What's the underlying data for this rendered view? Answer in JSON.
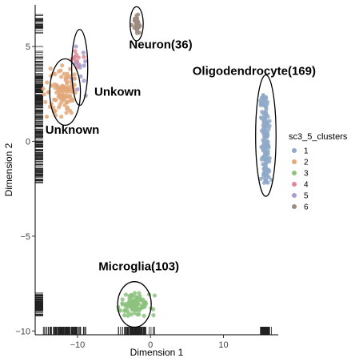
{
  "chart_data": {
    "type": "scatter",
    "xlabel": "Dimension 1",
    "ylabel": "Dimension 2",
    "xlim": [
      -15.8,
      17.5
    ],
    "ylim": [
      -10.2,
      7.2
    ],
    "x_ticks": [
      -10,
      0,
      10
    ],
    "y_ticks": [
      -10,
      -5,
      0,
      5
    ],
    "grid": false,
    "rug": true,
    "legend": {
      "title": "sc3_5_clusters",
      "position": "right",
      "entries": [
        {
          "label": "1",
          "color": "#8fa9c8"
        },
        {
          "label": "2",
          "color": "#e3a87a"
        },
        {
          "label": "3",
          "color": "#8cc27e"
        },
        {
          "label": "4",
          "color": "#de8a94"
        },
        {
          "label": "5",
          "color": "#a99ad0"
        },
        {
          "label": "6",
          "color": "#9d8a80"
        }
      ]
    },
    "series": [
      {
        "name": "1",
        "cluster": "Oligodendrocyte",
        "center": [
          15.7,
          0.3
        ],
        "points": 169,
        "x_spread": 0.45,
        "y_range": [
          -2.2,
          2.5
        ]
      },
      {
        "name": "2",
        "cluster": "Unknown",
        "center": [
          -11.8,
          2.6
        ],
        "points": 110,
        "x_spread": 1.3,
        "y_range": [
          1.3,
          4.0
        ]
      },
      {
        "name": "3",
        "cluster": "Microglia",
        "center": [
          -2.1,
          -8.6
        ],
        "points": 103,
        "x_spread": 1.2,
        "y_range": [
          -9.2,
          -8.0
        ]
      },
      {
        "name": "4",
        "cluster": "Unkown",
        "center": [
          -9.9,
          4.2
        ],
        "points": 12,
        "x_spread": 0.6,
        "y_range": [
          3.4,
          5.0
        ]
      },
      {
        "name": "5",
        "cluster": "Unkown",
        "center": [
          -9.6,
          3.8
        ],
        "points": 12,
        "x_spread": 0.6,
        "y_range": [
          2.2,
          5.0
        ]
      },
      {
        "name": "6",
        "cluster": "Neuron",
        "center": [
          -1.9,
          6.2
        ],
        "points": 36,
        "x_spread": 0.25,
        "y_range": [
          5.7,
          6.7
        ]
      }
    ],
    "annotations": [
      {
        "text": "Neuron(36)",
        "x": 1.4,
        "y": 4.9
      },
      {
        "text": "Oligodendrocyte(169)",
        "x": 14.2,
        "y": 3.5
      },
      {
        "text": "Unkown",
        "x": -4.5,
        "y": 2.4
      },
      {
        "text": "Unknown",
        "x": -10.7,
        "y": 0.4
      },
      {
        "text": "Microglia(103)",
        "x": -1.6,
        "y": -6.8
      }
    ],
    "ellipses": [
      {
        "label": "Neuron(36)",
        "cx": -1.9,
        "cy": 6.2,
        "rx": 0.9,
        "ry": 0.9
      },
      {
        "label": "Unkown",
        "cx": -9.7,
        "cy": 3.9,
        "rx": 1.1,
        "ry": 2.0
      },
      {
        "label": "Unknown",
        "cx": -11.7,
        "cy": 2.6,
        "rx": 2.1,
        "ry": 1.75
      },
      {
        "label": "Oligodendrocyte(169)",
        "cx": 15.8,
        "cy": 0.3,
        "rx": 1.4,
        "ry": 3.2
      },
      {
        "label": "Microglia(103)",
        "cx": -2.2,
        "cy": -8.6,
        "rx": 2.3,
        "ry": 1.2
      }
    ]
  }
}
